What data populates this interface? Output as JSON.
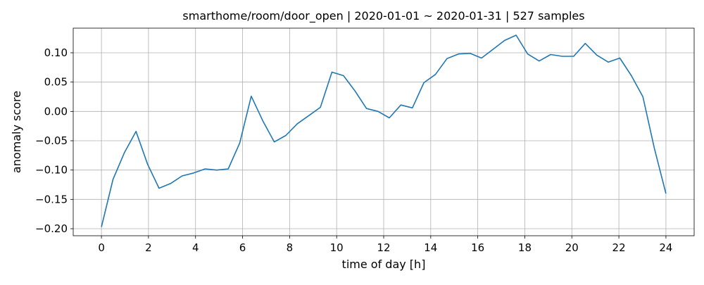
{
  "chart_data": {
    "type": "line",
    "title": "smarthome/room/door_open | 2020-01-01 ~ 2020-01-31 | 527 samples",
    "xlabel": "time of day [h]",
    "ylabel": "anomaly score",
    "xlim": [
      -1.2,
      25.2
    ],
    "ylim": [
      -0.212,
      0.142
    ],
    "xticks": [
      0,
      2,
      4,
      6,
      8,
      10,
      12,
      14,
      16,
      18,
      20,
      22,
      24
    ],
    "xtick_labels": [
      "0",
      "2",
      "4",
      "6",
      "8",
      "10",
      "12",
      "14",
      "16",
      "18",
      "20",
      "22",
      "24"
    ],
    "yticks": [
      -0.2,
      -0.15,
      -0.1,
      -0.05,
      0.0,
      0.05,
      0.1
    ],
    "ytick_labels": [
      "−0.20",
      "−0.15",
      "−0.10",
      "−0.05",
      "0.00",
      "0.05",
      "0.10"
    ],
    "grid": true,
    "series": [
      {
        "color": "#1f77b4",
        "x": [
          0.0,
          0.49,
          0.98,
          1.47,
          1.96,
          2.45,
          2.94,
          3.43,
          3.92,
          4.41,
          4.9,
          5.39,
          5.88,
          6.37,
          6.86,
          7.35,
          7.84,
          8.33,
          8.82,
          9.31,
          9.8,
          10.29,
          10.78,
          11.27,
          11.76,
          12.24,
          12.73,
          13.22,
          13.71,
          14.2,
          14.69,
          15.18,
          15.67,
          16.16,
          16.65,
          17.14,
          17.63,
          18.12,
          18.61,
          19.1,
          19.59,
          20.08,
          20.57,
          21.06,
          21.55,
          22.04,
          22.53,
          23.02,
          23.51,
          24.0
        ],
        "y": [
          -0.197,
          -0.116,
          -0.07,
          -0.034,
          -0.09,
          -0.131,
          -0.123,
          -0.11,
          -0.105,
          -0.098,
          -0.1,
          -0.098,
          -0.054,
          0.026,
          -0.016,
          -0.052,
          -0.041,
          -0.021,
          -0.007,
          0.007,
          0.067,
          0.061,
          0.035,
          0.005,
          0.0,
          -0.011,
          0.011,
          0.006,
          0.049,
          0.063,
          0.09,
          0.098,
          0.099,
          0.091,
          0.106,
          0.121,
          0.13,
          0.098,
          0.086,
          0.097,
          0.094,
          0.094,
          0.116,
          0.096,
          0.084,
          0.091,
          0.061,
          0.025,
          -0.063,
          -0.14
        ]
      }
    ]
  }
}
